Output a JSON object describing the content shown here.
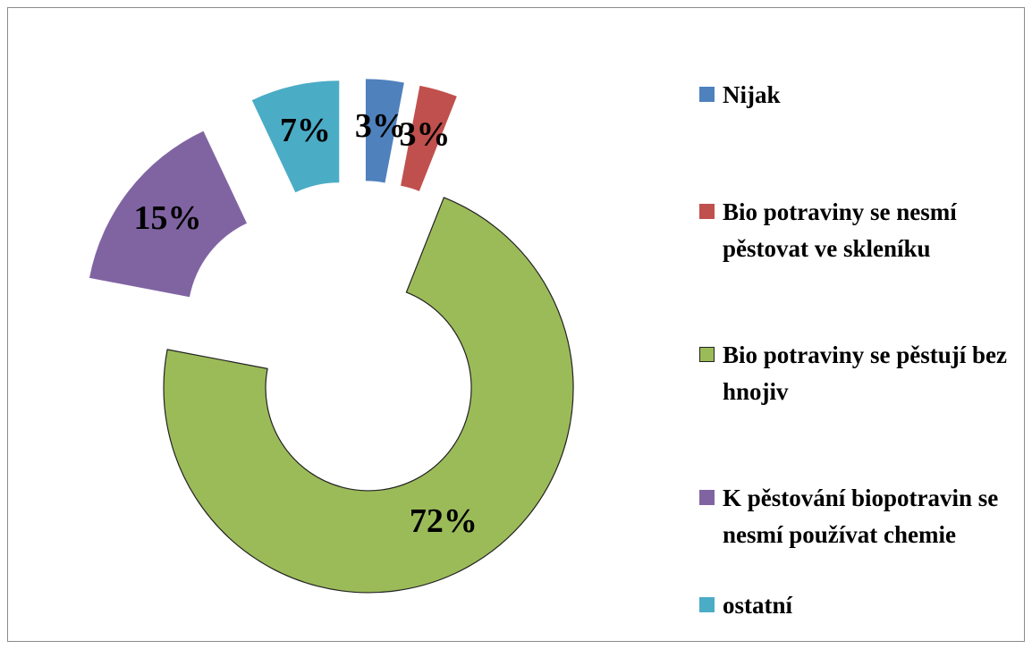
{
  "chart_data": {
    "type": "donut",
    "categories": [
      "Nijak",
      "Bio potraviny se nesmí pěstovat ve skleníku",
      "Bio potraviny se pěstují bez hnojiv",
      "K pěstování biopotravin se nesmí používat chemie",
      "ostatní"
    ],
    "values": [
      3,
      3,
      72,
      15,
      7
    ],
    "value_labels": [
      "3%",
      "3%",
      "72%",
      "15%",
      "7%"
    ],
    "colors": [
      "#4f81bd",
      "#c0504d",
      "#9bbb59",
      "#8064a2",
      "#4bacc6"
    ],
    "legend": "right"
  }
}
